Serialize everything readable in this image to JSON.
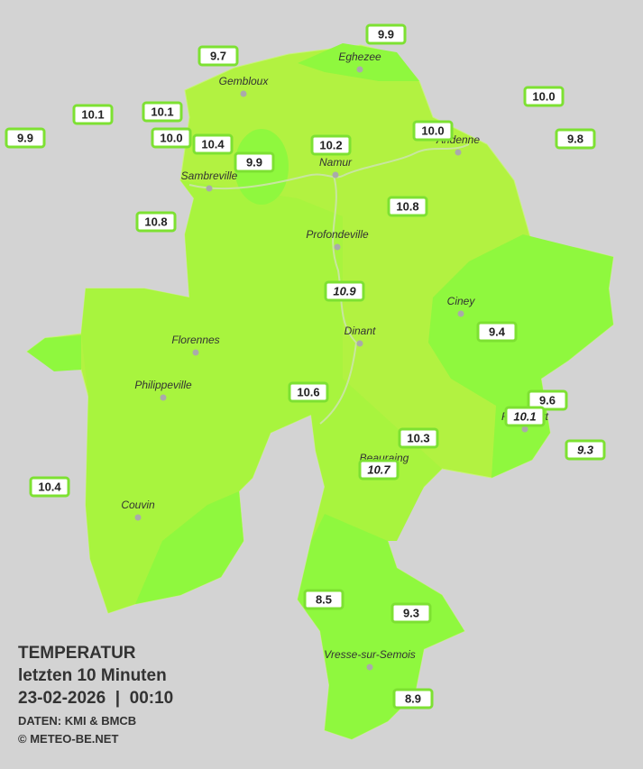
{
  "title": {
    "line1": "TEMPERATUR",
    "line2": "letzten 10 Minuten",
    "line3": "23-02-2026  |  00:10",
    "source": "DATEN: KMI & BMCB",
    "copyright": "© METEO-BE.NET"
  },
  "cities": [
    "Eghezee",
    "Gembloux",
    "Andenne",
    "Namur",
    "Sambreville",
    "Profondeville",
    "Ciney",
    "Dinant",
    "Florennes",
    "Philippeville",
    "Rochefort",
    "Beauraing",
    "Couvin",
    "Vresse-sur-Semois"
  ],
  "stations": [
    "9.9",
    "9.7",
    "10.1",
    "10.1",
    "9.9",
    "10.0",
    "10.4",
    "9.9",
    "10.2",
    "10.0",
    "10.0",
    "9.8",
    "10.8",
    "10.8",
    "10.9",
    "9.4",
    "10.6",
    "9.6",
    "10.1",
    "10.3",
    "9.3",
    "10.7",
    "10.4",
    "8.5",
    "9.3",
    "8.9"
  ]
}
